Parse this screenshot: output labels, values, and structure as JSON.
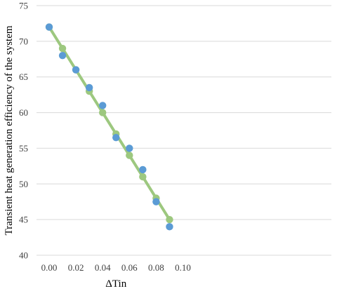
{
  "chart_data": {
    "type": "scatter",
    "xlabel": "ΔTin",
    "ylabel": "Transient heat generation efficiency of the system",
    "xlim": [
      0.0,
      0.1
    ],
    "ylim": [
      40,
      75
    ],
    "x_ticks": [
      "0.00",
      "0.02",
      "0.04",
      "0.06",
      "0.08",
      "0.10"
    ],
    "y_ticks": [
      "40",
      "45",
      "50",
      "55",
      "60",
      "65",
      "70",
      "75"
    ],
    "grid": "horizontal",
    "series": [
      {
        "color": "#9dc87f",
        "line": true,
        "x": [
          0.0,
          0.01,
          0.02,
          0.03,
          0.04,
          0.05,
          0.06,
          0.07,
          0.08,
          0.09
        ],
        "y": [
          72,
          69,
          66,
          63,
          60,
          57,
          54,
          51,
          48,
          45
        ]
      },
      {
        "color": "#5b9bd5",
        "line": false,
        "x": [
          0.0,
          0.01,
          0.02,
          0.03,
          0.04,
          0.05,
          0.06,
          0.07,
          0.08,
          0.09
        ],
        "y": [
          72,
          68,
          66,
          63.5,
          61,
          56.5,
          55,
          52,
          47.5,
          44
        ]
      }
    ]
  }
}
